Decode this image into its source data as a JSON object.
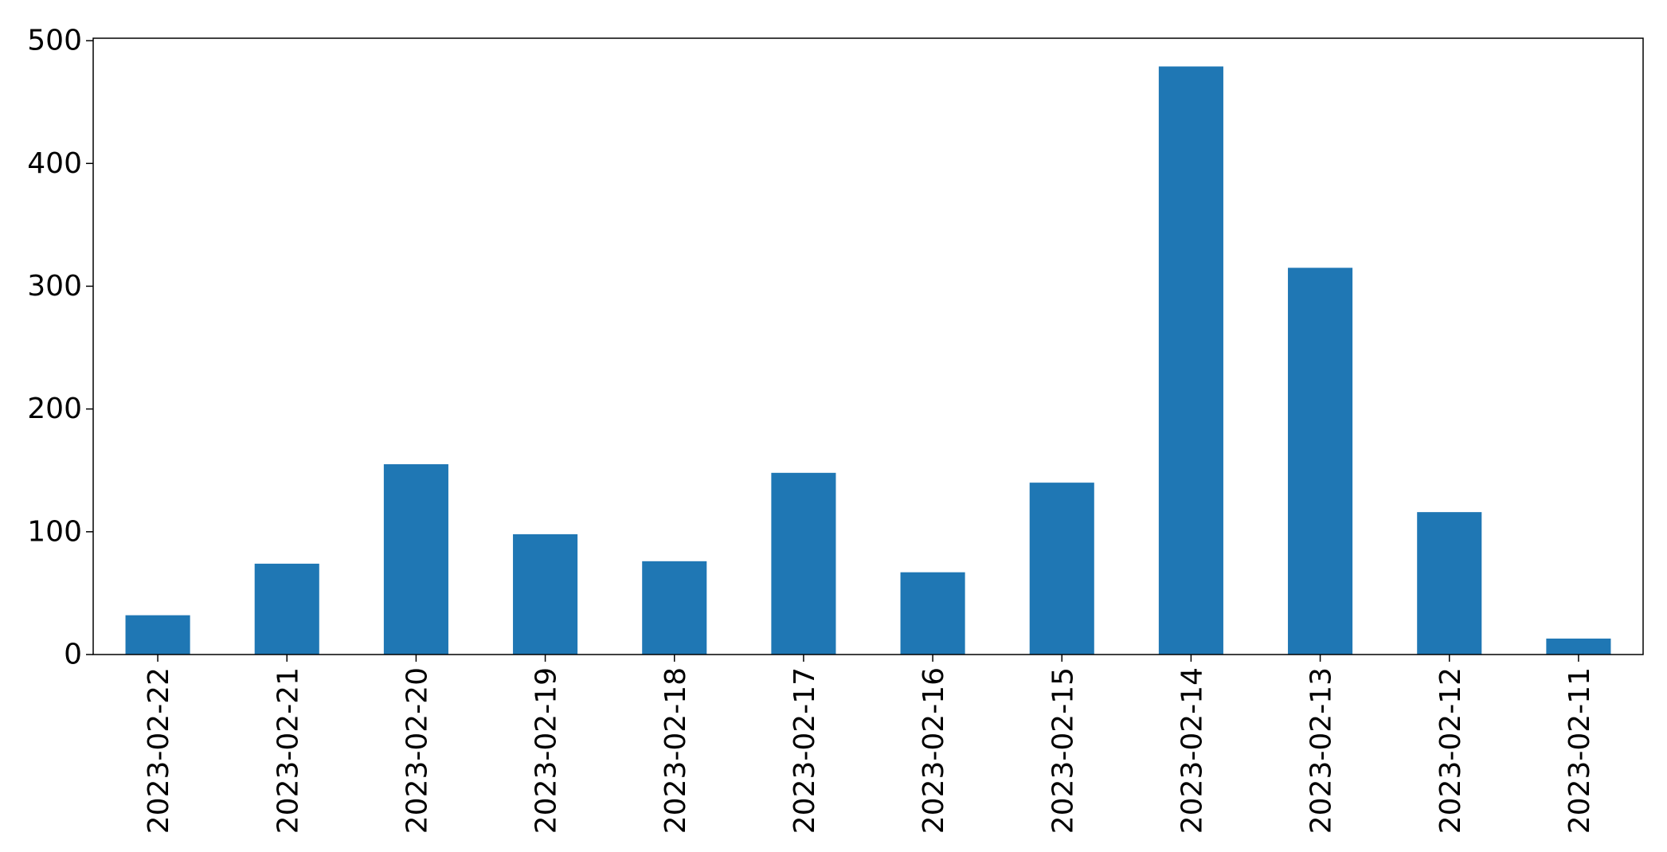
{
  "chart_data": {
    "type": "bar",
    "title": "",
    "xlabel": "",
    "ylabel": "",
    "categories": [
      "2023-02-22",
      "2023-02-21",
      "2023-02-20",
      "2023-02-19",
      "2023-02-18",
      "2023-02-17",
      "2023-02-16",
      "2023-02-15",
      "2023-02-14",
      "2023-02-13",
      "2023-02-12",
      "2023-02-11"
    ],
    "values": [
      32,
      74,
      155,
      98,
      76,
      148,
      67,
      140,
      479,
      315,
      116,
      13
    ],
    "ylim": [
      0,
      502
    ],
    "yticks": [
      "0",
      "100",
      "200",
      "300",
      "400",
      "500"
    ],
    "bar_color": "#1f77b4",
    "grid": false,
    "legend": "none"
  }
}
